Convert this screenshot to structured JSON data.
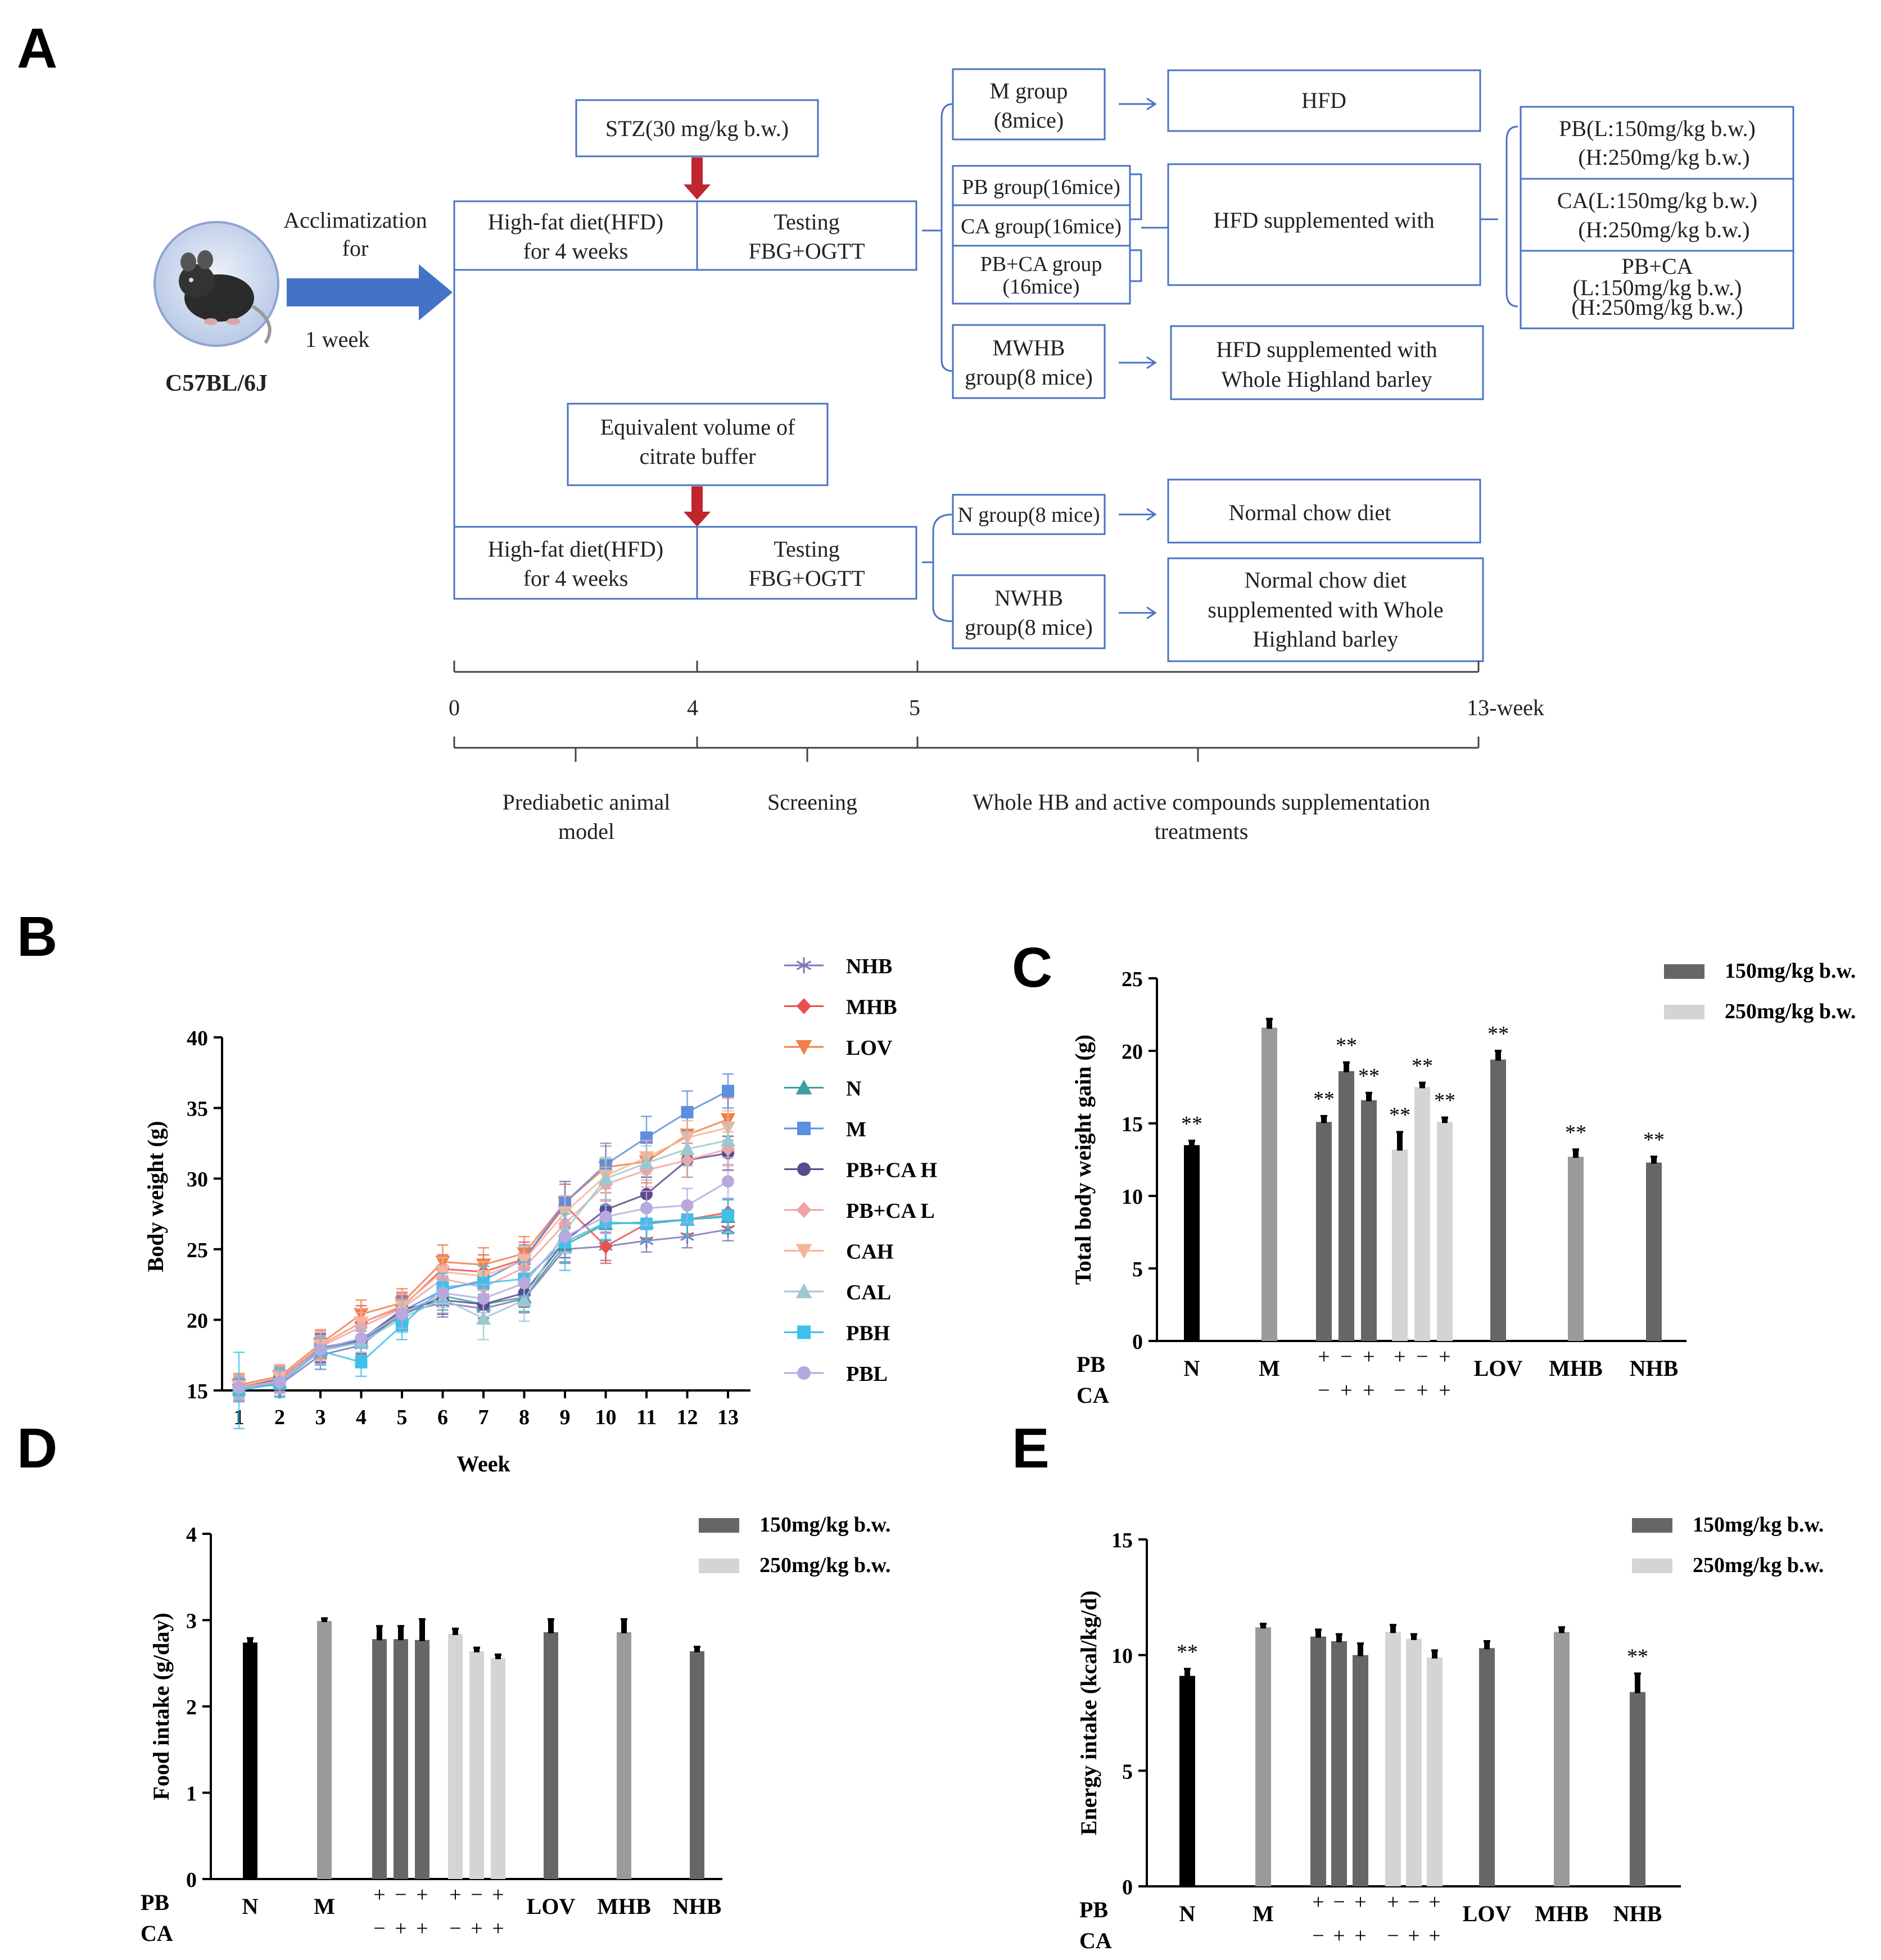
{
  "panels": {
    "A": "A",
    "B": "B",
    "C": "C",
    "D": "D",
    "E": "E"
  },
  "colors": {
    "box_border": "#4a73c4",
    "arrow_blue": "#4472c4",
    "arrow_red": "#c0262e",
    "black_bar": "#000000",
    "m_bar": "#9a9a9a",
    "dose150": "#666666",
    "dose250": "#d4d4d4"
  },
  "panel_a": {
    "mouse_label": "C57BL/6J",
    "acclim_line1": "Acclimatization",
    "acclim_line2": "for",
    "acclim_line3": "1 week",
    "stz": "STZ(30 mg/kg b.w.)",
    "citrate_line1": "Equivalent volume of",
    "citrate_line2": "citrate buffer",
    "hfd_top_line1": "High-fat diet(HFD)",
    "hfd_top_line2": "for 4 weeks",
    "testing_top_line1": "Testing",
    "testing_top_line2": "FBG+OGTT",
    "hfd_bottom_line1": "High-fat diet(HFD)",
    "hfd_bottom_line2": "for 4 weeks",
    "testing_bottom_line1": "Testing",
    "testing_bottom_line2": "FBG+OGTT",
    "m_group_line1": "M group",
    "m_group_line2": "(8mice)",
    "hfd": "HFD",
    "pb_group": "PB group(16mice)",
    "ca_group": "CA group(16mice)",
    "pbca_group_line1": "PB+CA group",
    "pbca_group_line2": "(16mice)",
    "hfd_supp": "HFD supplemented with",
    "dose_pb_line1": "PB(L:150mg/kg b.w.)",
    "dose_pb_line2": "(H:250mg/kg b.w.)",
    "dose_ca_line1": "CA(L:150mg/kg b.w.)",
    "dose_ca_line2": "(H:250mg/kg b.w.)",
    "dose_pbca_line1": "PB+CA",
    "dose_pbca_line2": "(L:150mg/kg b.w.)",
    "dose_pbca_line3": "(H:250mg/kg b.w.)",
    "mwhb_line1": "MWHB",
    "mwhb_line2": "group(8 mice)",
    "hfd_whb_line1": "HFD supplemented with",
    "hfd_whb_line2": "Whole Highland barley",
    "n_group": "N group(8 mice)",
    "normal_chow": "Normal chow diet",
    "nwhb_line1": "NWHB",
    "nwhb_line2": "group(8 mice)",
    "chow_whb_line1": "Normal chow diet",
    "chow_whb_line2": "supplemented with Whole",
    "chow_whb_line3": "Highland barley",
    "tl_0": "0",
    "tl_4": "4",
    "tl_5": "5",
    "tl_13": "13-week",
    "phase1_line1": "Prediabetic animal",
    "phase1_line2": "model",
    "phase2": "Screening",
    "phase3_line1": "Whole HB and active compounds supplementation",
    "phase3_line2": "treatments"
  },
  "legend_dose": {
    "d150": "150mg/kg b.w.",
    "d250": "250mg/kg b.w."
  },
  "bar_axes": {
    "pb_label": "PB",
    "ca_label": "CA",
    "pb_signs": [
      "+",
      "−",
      "+",
      "+",
      "−",
      "+"
    ],
    "ca_signs": [
      "−",
      "+",
      "+",
      "−",
      "+",
      "+"
    ]
  },
  "chart_data": [
    {
      "panel": "B",
      "type": "line",
      "title": "",
      "xlabel": "Week",
      "ylabel": "Body weight (g)",
      "xlim": [
        1,
        13
      ],
      "ylim": [
        15,
        40
      ],
      "xticks": [
        1,
        2,
        3,
        4,
        5,
        6,
        7,
        8,
        9,
        10,
        11,
        12,
        13
      ],
      "yticks": [
        15,
        20,
        25,
        30,
        35,
        40
      ],
      "x": [
        1,
        2,
        3,
        4,
        5,
        6,
        7,
        8,
        9,
        10,
        11,
        12,
        13
      ],
      "series": [
        {
          "name": "NHB",
          "color": "#8076b3",
          "marker": "asterisk",
          "values": [
            15.2,
            15.4,
            17.5,
            18.2,
            20.5,
            21.2,
            20.8,
            21.5,
            25.0,
            25.2,
            25.6,
            25.9,
            26.4
          ],
          "err": [
            0.8,
            0.8,
            1.0,
            1.0,
            1.0,
            1.0,
            1.0,
            1.0,
            1.0,
            1.0,
            0.8,
            0.8,
            0.8
          ]
        },
        {
          "name": "MHB",
          "color": "#e8514d",
          "marker": "diamond",
          "values": [
            15.3,
            15.7,
            18.2,
            19.8,
            20.9,
            23.6,
            23.4,
            24.3,
            28.1,
            25.2,
            26.8,
            27.1,
            27.6
          ],
          "err": [
            0.8,
            0.8,
            1.0,
            1.2,
            1.0,
            1.0,
            1.2,
            1.2,
            1.5,
            1.2,
            1.0,
            1.0,
            1.0
          ]
        },
        {
          "name": "LOV",
          "color": "#f07e48",
          "marker": "triangle-down",
          "values": [
            15.4,
            16.0,
            18.3,
            20.4,
            21.2,
            24.1,
            23.9,
            24.7,
            28.3,
            30.8,
            31.2,
            33.1,
            34.2
          ],
          "err": [
            0.8,
            0.8,
            1.0,
            1.0,
            1.0,
            1.2,
            1.2,
            1.2,
            1.5,
            1.5,
            1.5,
            1.5,
            1.5
          ]
        },
        {
          "name": "N",
          "color": "#3d9e9e",
          "marker": "triangle",
          "values": [
            15.1,
            15.6,
            17.9,
            18.5,
            20.3,
            21.7,
            21.1,
            21.6,
            25.3,
            26.8,
            26.9,
            27.1,
            27.3
          ],
          "err": [
            0.8,
            0.8,
            1.0,
            1.0,
            1.0,
            1.0,
            1.0,
            1.0,
            1.2,
            1.2,
            1.2,
            1.2,
            1.2
          ]
        },
        {
          "name": "M",
          "color": "#5b8fe0",
          "marker": "square",
          "values": [
            15.0,
            15.8,
            18.0,
            18.4,
            20.6,
            22.1,
            22.8,
            24.3,
            28.3,
            31.0,
            32.9,
            34.7,
            36.2
          ],
          "err": [
            0.8,
            0.8,
            1.0,
            1.0,
            1.0,
            1.0,
            1.0,
            1.0,
            1.5,
            1.5,
            1.5,
            1.5,
            1.2
          ]
        },
        {
          "name": "PB+CA H",
          "color": "#5b4a8c",
          "marker": "circle",
          "values": [
            15.1,
            15.9,
            18.0,
            18.6,
            20.7,
            21.4,
            21.1,
            21.9,
            25.6,
            27.8,
            28.9,
            31.3,
            31.8
          ],
          "err": [
            0.8,
            0.8,
            1.0,
            1.0,
            1.0,
            1.0,
            1.0,
            1.0,
            1.2,
            1.2,
            1.2,
            1.2,
            1.2
          ]
        },
        {
          "name": "PB+CA L",
          "color": "#f0a3a3",
          "marker": "diamond",
          "values": [
            15.2,
            15.7,
            18.1,
            19.5,
            20.8,
            22.9,
            22.3,
            23.7,
            26.8,
            29.6,
            30.6,
            31.3,
            32.1
          ],
          "err": [
            0.8,
            0.8,
            1.0,
            1.0,
            1.0,
            1.0,
            1.0,
            1.0,
            1.2,
            1.2,
            1.2,
            1.2,
            1.2
          ]
        },
        {
          "name": "CAH",
          "color": "#f5b59a",
          "marker": "triangle-down",
          "values": [
            15.3,
            15.9,
            18.2,
            19.8,
            21.0,
            23.4,
            23.1,
            24.2,
            27.6,
            30.2,
            31.5,
            32.9,
            33.6
          ],
          "err": [
            0.8,
            0.8,
            1.0,
            1.0,
            1.0,
            1.0,
            1.0,
            1.0,
            1.2,
            1.2,
            1.2,
            1.2,
            1.2
          ]
        },
        {
          "name": "CAL",
          "color": "#9cc8d0",
          "marker": "triangle",
          "values": [
            15.1,
            15.6,
            17.8,
            18.4,
            20.1,
            21.5,
            20.1,
            21.4,
            26.3,
            30.0,
            31.1,
            32.1,
            32.7
          ],
          "err": [
            0.8,
            0.8,
            1.0,
            1.0,
            1.0,
            1.0,
            1.5,
            1.5,
            1.5,
            1.5,
            1.2,
            1.2,
            1.2
          ]
        },
        {
          "name": "PBH",
          "color": "#3fc0ea",
          "marker": "square",
          "values": [
            15.0,
            15.5,
            17.8,
            17.0,
            19.6,
            22.3,
            22.6,
            22.9,
            25.5,
            26.9,
            26.8,
            27.1,
            27.4
          ],
          "err": [
            2.7,
            1.0,
            1.0,
            1.0,
            1.0,
            1.0,
            1.2,
            1.2,
            2.0,
            1.2,
            1.2,
            1.2,
            1.2
          ]
        },
        {
          "name": "PBL",
          "color": "#b7a9de",
          "marker": "circle",
          "values": [
            15.2,
            15.6,
            17.9,
            18.7,
            20.4,
            21.9,
            21.5,
            22.6,
            25.9,
            27.3,
            27.9,
            28.1,
            29.8
          ],
          "err": [
            0.8,
            0.8,
            1.0,
            1.0,
            1.0,
            1.0,
            1.0,
            1.0,
            1.2,
            1.2,
            1.2,
            1.2,
            1.2
          ]
        }
      ]
    },
    {
      "panel": "C",
      "type": "bar",
      "title": "",
      "ylabel": "Total body weight gain (g)",
      "ylim": [
        0,
        25
      ],
      "yticks": [
        0,
        5,
        10,
        15,
        20,
        25
      ],
      "categories": [
        "N",
        "M",
        "PB",
        "CA",
        "PB+CA",
        "PB",
        "CA",
        "PB+CA",
        "LOV",
        "MHB",
        "NHB"
      ],
      "group_labels": [
        "N",
        "M",
        "LOV",
        "MHB",
        "NHB"
      ],
      "values": [
        13.5,
        21.6,
        15.1,
        18.6,
        16.6,
        13.2,
        17.5,
        15.1,
        19.4,
        12.7,
        12.3
      ],
      "err": [
        0.3,
        0.6,
        0.4,
        0.6,
        0.5,
        1.2,
        0.3,
        0.3,
        0.6,
        0.5,
        0.4
      ],
      "sig": [
        "**",
        "",
        "**",
        "**",
        "**",
        "**",
        "**",
        "**",
        "**",
        "**",
        "**"
      ],
      "fills": [
        "black",
        "m",
        "d150",
        "d150",
        "d150",
        "d250",
        "d250",
        "d250",
        "d150",
        "m",
        "d150"
      ]
    },
    {
      "panel": "D",
      "type": "bar",
      "title": "",
      "ylabel": "Food intake (g/day)",
      "ylim": [
        0,
        4
      ],
      "yticks": [
        0,
        1,
        2,
        3,
        4
      ],
      "categories": [
        "N",
        "M",
        "PB",
        "CA",
        "PB+CA",
        "PB",
        "CA",
        "PB+CA",
        "LOV",
        "MHB",
        "NHB"
      ],
      "group_labels": [
        "N",
        "M",
        "LOV",
        "MHB",
        "NHB"
      ],
      "values": [
        2.74,
        2.99,
        2.78,
        2.78,
        2.77,
        2.84,
        2.64,
        2.56,
        2.86,
        2.86,
        2.64
      ],
      "err": [
        0.05,
        0.03,
        0.15,
        0.15,
        0.24,
        0.06,
        0.04,
        0.04,
        0.15,
        0.15,
        0.05
      ],
      "sig": [
        "",
        "",
        "",
        "",
        "",
        "",
        "",
        "",
        "",
        "",
        ""
      ],
      "fills": [
        "black",
        "m",
        "d150",
        "d150",
        "d150",
        "d250",
        "d250",
        "d250",
        "d150",
        "m",
        "d150"
      ]
    },
    {
      "panel": "E",
      "type": "bar",
      "title": "",
      "ylabel": "Energy intake (kcal/kg/d)",
      "ylim": [
        0,
        15
      ],
      "yticks": [
        0,
        5,
        10,
        15
      ],
      "categories": [
        "N",
        "M",
        "PB",
        "CA",
        "PB+CA",
        "PB",
        "CA",
        "PB+CA",
        "LOV",
        "MHB",
        "NHB"
      ],
      "group_labels": [
        "N",
        "M",
        "LOV",
        "MHB",
        "NHB"
      ],
      "values": [
        9.1,
        11.2,
        10.8,
        10.6,
        10.0,
        11.0,
        10.7,
        9.9,
        10.3,
        11.0,
        8.4
      ],
      "err": [
        0.3,
        0.15,
        0.3,
        0.3,
        0.5,
        0.3,
        0.2,
        0.3,
        0.3,
        0.2,
        0.8
      ],
      "sig": [
        "**",
        "",
        "",
        "",
        "",
        "",
        "",
        "",
        "",
        "",
        "**"
      ],
      "fills": [
        "black",
        "m",
        "d150",
        "d150",
        "d150",
        "d250",
        "d250",
        "d250",
        "d150",
        "m",
        "d150"
      ]
    }
  ]
}
